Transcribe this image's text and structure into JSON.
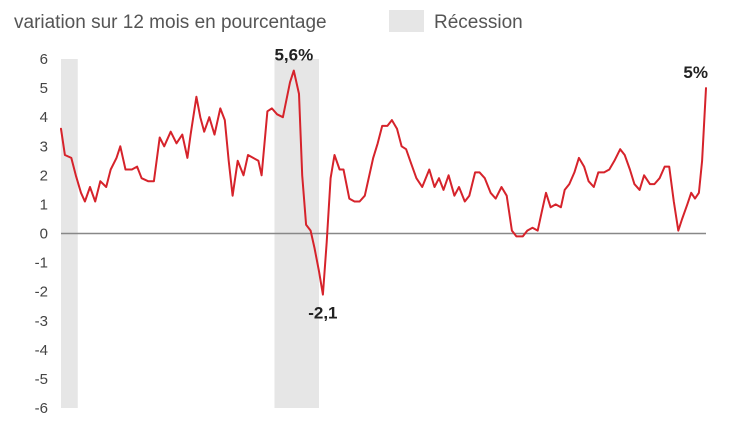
{
  "chart_data": {
    "type": "line",
    "title": "",
    "subtitle": "variation sur 12 mois en pourcentage",
    "xlabel": "",
    "ylabel": "",
    "ylim": [
      -6,
      6
    ],
    "y_ticks": [
      "6",
      "5",
      "4",
      "3",
      "2",
      "1",
      "0",
      "-1",
      "-2",
      "-3",
      "-4",
      "-5",
      "-6"
    ],
    "x_range": [
      0,
      100
    ],
    "zero_line": true,
    "legend": {
      "label": "Récession",
      "placement": "top"
    },
    "recessions": [
      {
        "start": 0,
        "end": 2.6
      },
      {
        "start": 33.1,
        "end": 40.0
      }
    ],
    "series": [
      {
        "name": "variation sur 12 mois",
        "color": "#d6232b",
        "points": [
          [
            0.0,
            3.6
          ],
          [
            0.6,
            2.7
          ],
          [
            1.6,
            2.6
          ],
          [
            2.3,
            2.0
          ],
          [
            3.1,
            1.4
          ],
          [
            3.7,
            1.1
          ],
          [
            4.5,
            1.6
          ],
          [
            5.3,
            1.1
          ],
          [
            6.1,
            1.8
          ],
          [
            7.0,
            1.6
          ],
          [
            7.7,
            2.2
          ],
          [
            8.6,
            2.6
          ],
          [
            9.2,
            3.0
          ],
          [
            10.0,
            2.2
          ],
          [
            11.0,
            2.2
          ],
          [
            11.8,
            2.3
          ],
          [
            12.5,
            1.9
          ],
          [
            13.5,
            1.8
          ],
          [
            14.4,
            1.8
          ],
          [
            15.3,
            3.3
          ],
          [
            16.0,
            3.0
          ],
          [
            17.0,
            3.5
          ],
          [
            17.9,
            3.1
          ],
          [
            18.8,
            3.4
          ],
          [
            19.6,
            2.6
          ],
          [
            20.1,
            3.4
          ],
          [
            21.0,
            4.7
          ],
          [
            21.6,
            4.0
          ],
          [
            22.2,
            3.5
          ],
          [
            23.0,
            4.0
          ],
          [
            23.8,
            3.4
          ],
          [
            24.7,
            4.3
          ],
          [
            25.4,
            3.9
          ],
          [
            26.0,
            2.5
          ],
          [
            26.6,
            1.3
          ],
          [
            27.4,
            2.5
          ],
          [
            28.3,
            2.0
          ],
          [
            29.0,
            2.7
          ],
          [
            29.8,
            2.6
          ],
          [
            30.6,
            2.5
          ],
          [
            31.1,
            2.0
          ],
          [
            32.0,
            4.2
          ],
          [
            32.7,
            4.3
          ],
          [
            33.5,
            4.1
          ],
          [
            34.4,
            4.0
          ],
          [
            35.5,
            5.2
          ],
          [
            36.1,
            5.6
          ],
          [
            36.9,
            4.8
          ],
          [
            37.4,
            2.0
          ],
          [
            38.0,
            0.3
          ],
          [
            38.7,
            0.1
          ],
          [
            39.3,
            -0.5
          ],
          [
            40.0,
            -1.3
          ],
          [
            40.6,
            -2.1
          ],
          [
            41.2,
            -0.3
          ],
          [
            41.8,
            1.9
          ],
          [
            42.4,
            2.7
          ],
          [
            43.2,
            2.2
          ],
          [
            43.8,
            2.2
          ],
          [
            44.7,
            1.2
          ],
          [
            45.5,
            1.1
          ],
          [
            46.3,
            1.1
          ],
          [
            47.1,
            1.3
          ],
          [
            48.4,
            2.6
          ],
          [
            49.1,
            3.1
          ],
          [
            49.8,
            3.7
          ],
          [
            50.6,
            3.7
          ],
          [
            51.3,
            3.9
          ],
          [
            52.1,
            3.6
          ],
          [
            52.8,
            3.0
          ],
          [
            53.5,
            2.9
          ],
          [
            54.3,
            2.4
          ],
          [
            55.1,
            1.9
          ],
          [
            56.0,
            1.6
          ],
          [
            57.1,
            2.2
          ],
          [
            57.9,
            1.6
          ],
          [
            58.6,
            1.9
          ],
          [
            59.3,
            1.5
          ],
          [
            60.1,
            2.0
          ],
          [
            61.0,
            1.3
          ],
          [
            61.7,
            1.6
          ],
          [
            62.6,
            1.1
          ],
          [
            63.3,
            1.3
          ],
          [
            64.2,
            2.1
          ],
          [
            64.9,
            2.1
          ],
          [
            65.7,
            1.9
          ],
          [
            66.6,
            1.4
          ],
          [
            67.4,
            1.2
          ],
          [
            68.3,
            1.6
          ],
          [
            69.1,
            1.3
          ],
          [
            69.9,
            0.1
          ],
          [
            70.6,
            -0.1
          ],
          [
            71.6,
            -0.1
          ],
          [
            72.3,
            0.1
          ],
          [
            73.1,
            0.2
          ],
          [
            73.9,
            0.1
          ],
          [
            74.5,
            0.7
          ],
          [
            75.2,
            1.4
          ],
          [
            75.9,
            0.9
          ],
          [
            76.7,
            1.0
          ],
          [
            77.5,
            0.9
          ],
          [
            78.1,
            1.5
          ],
          [
            78.8,
            1.7
          ],
          [
            79.6,
            2.1
          ],
          [
            80.3,
            2.6
          ],
          [
            81.1,
            2.3
          ],
          [
            81.8,
            1.8
          ],
          [
            82.6,
            1.6
          ],
          [
            83.3,
            2.1
          ],
          [
            84.2,
            2.1
          ],
          [
            85.0,
            2.2
          ],
          [
            85.8,
            2.5
          ],
          [
            86.7,
            2.9
          ],
          [
            87.4,
            2.7
          ],
          [
            88.2,
            2.2
          ],
          [
            88.9,
            1.7
          ],
          [
            89.7,
            1.5
          ],
          [
            90.4,
            2.0
          ],
          [
            91.3,
            1.7
          ],
          [
            92.0,
            1.7
          ],
          [
            92.8,
            1.9
          ],
          [
            93.6,
            2.3
          ],
          [
            94.3,
            2.3
          ],
          [
            95.0,
            1.1
          ],
          [
            95.7,
            0.1
          ],
          [
            96.3,
            0.5
          ],
          [
            97.1,
            1.0
          ],
          [
            97.7,
            1.4
          ],
          [
            98.3,
            1.2
          ],
          [
            98.9,
            1.4
          ],
          [
            99.4,
            2.5
          ],
          [
            100.0,
            5.0
          ]
        ]
      }
    ],
    "annotations": [
      {
        "text": "5,6%",
        "x": 36.1,
        "y": 5.6,
        "placement": "above"
      },
      {
        "text": "-2,1",
        "x": 40.6,
        "y": -2.1,
        "placement": "below"
      },
      {
        "text": "5%",
        "x": 100.0,
        "y": 5.0,
        "placement": "above"
      }
    ]
  }
}
